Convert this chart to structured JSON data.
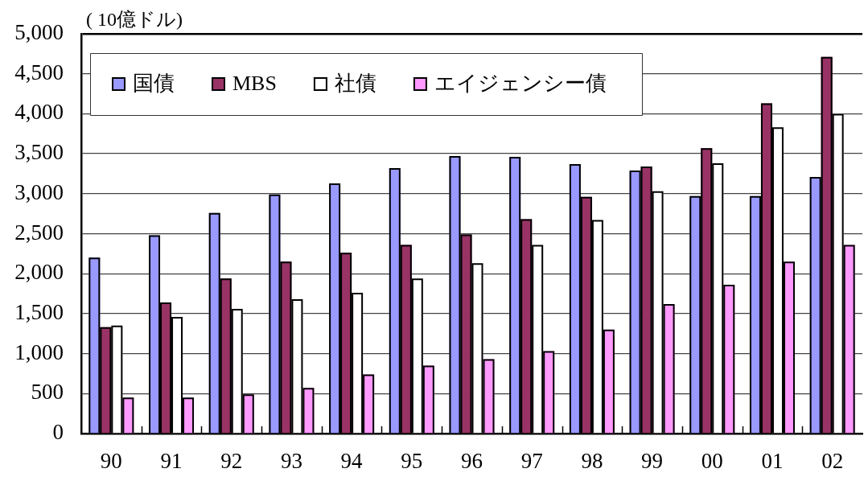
{
  "chart_data": {
    "type": "bar",
    "ylabel": "( 10億ドル)",
    "categories": [
      "90",
      "91",
      "92",
      "93",
      "94",
      "95",
      "96",
      "97",
      "98",
      "99",
      "00",
      "01",
      "02"
    ],
    "series": [
      {
        "name": "国債",
        "color": "#9999ff",
        "values": [
          2200,
          2480,
          2760,
          2990,
          3130,
          3320,
          3470,
          3460,
          3370,
          3290,
          2970,
          2970,
          3210
        ]
      },
      {
        "name": "MBS",
        "color": "#993366",
        "values": [
          1330,
          1640,
          1940,
          2150,
          2260,
          2360,
          2490,
          2680,
          2960,
          3340,
          3570,
          4130,
          4710
        ]
      },
      {
        "name": "社債",
        "color": "#ffffff",
        "values": [
          1350,
          1460,
          1560,
          1680,
          1760,
          1940,
          2130,
          2360,
          2670,
          3030,
          3380,
          3830,
          4000
        ]
      },
      {
        "name": "エイジェンシー債",
        "color": "#ff99ff",
        "values": [
          450,
          450,
          490,
          570,
          740,
          850,
          930,
          1030,
          1300,
          1620,
          1860,
          2150,
          2360
        ]
      }
    ],
    "ylim": [
      0,
      5000
    ],
    "yticks": [
      0,
      500,
      {
        "value": 1000,
        "label": "1,000"
      },
      {
        "value": 1500,
        "label": "1,500"
      },
      {
        "value": 2000,
        "label": "2,000"
      },
      {
        "value": 2500,
        "label": "2,500"
      },
      {
        "value": 3000,
        "label": "3,000"
      },
      {
        "value": 3500,
        "label": "3,500"
      },
      {
        "value": 4000,
        "label": "4,000"
      },
      {
        "value": 4500,
        "label": "4,500"
      },
      {
        "value": 5000,
        "label": "5,000"
      }
    ],
    "grid": "y",
    "legend": "top left"
  }
}
